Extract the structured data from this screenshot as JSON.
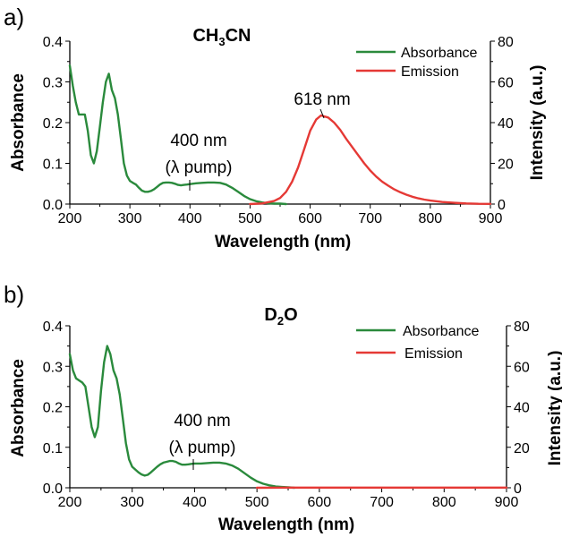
{
  "chart_data": [
    {
      "type": "line",
      "panel_label": "a)",
      "solvent": {
        "base": "CH",
        "sub": "3",
        "rest": "CN"
      },
      "xlabel": "Wavelength (nm)",
      "ylabel": "Absorbance",
      "y2label": "Intensity (a.u.)",
      "xlim": [
        200,
        900
      ],
      "ylim": [
        0,
        0.4
      ],
      "y2lim": [
        0,
        80
      ],
      "xticks": [
        200,
        300,
        400,
        500,
        600,
        700,
        800,
        900
      ],
      "yticks": [
        0.0,
        0.1,
        0.2,
        0.3,
        0.4
      ],
      "ytick_labels": [
        "0.0",
        "0.1",
        "0.2",
        "0.3",
        "0.4"
      ],
      "y2ticks": [
        0,
        20,
        40,
        60,
        80
      ],
      "legend": {
        "position": "top-right",
        "entries": [
          "Absorbance",
          "Emission"
        ]
      },
      "annotations": [
        {
          "text": "618 nm",
          "x": 618,
          "y2": 45
        },
        {
          "text": "400 nm",
          "x": 400,
          "y": 0.05
        },
        {
          "text": "(λ pump)",
          "x": 400,
          "y": 0.05
        }
      ],
      "series": [
        {
          "name": "Absorbance",
          "color": "#2a8a3c",
          "axis": "left",
          "x": [
            200,
            205,
            210,
            215,
            220,
            225,
            230,
            235,
            240,
            245,
            250,
            255,
            260,
            265,
            270,
            275,
            280,
            285,
            290,
            295,
            300,
            305,
            310,
            315,
            320,
            325,
            330,
            335,
            340,
            345,
            350,
            355,
            360,
            365,
            370,
            375,
            380,
            385,
            390,
            395,
            400,
            410,
            420,
            430,
            440,
            450,
            460,
            470,
            480,
            490,
            500,
            510,
            520,
            530,
            540,
            550,
            560
          ],
          "y": [
            0.34,
            0.29,
            0.25,
            0.22,
            0.22,
            0.22,
            0.18,
            0.12,
            0.1,
            0.13,
            0.19,
            0.25,
            0.3,
            0.32,
            0.28,
            0.26,
            0.22,
            0.16,
            0.1,
            0.07,
            0.057,
            0.052,
            0.048,
            0.04,
            0.033,
            0.03,
            0.03,
            0.032,
            0.036,
            0.042,
            0.048,
            0.052,
            0.053,
            0.053,
            0.052,
            0.05,
            0.047,
            0.046,
            0.047,
            0.048,
            0.049,
            0.051,
            0.052,
            0.053,
            0.053,
            0.052,
            0.048,
            0.04,
            0.03,
            0.02,
            0.012,
            0.007,
            0.004,
            0.002,
            0.001,
            0.001,
            0.0
          ]
        },
        {
          "name": "Emission",
          "color": "#e53935",
          "axis": "right",
          "x": [
            500,
            520,
            540,
            550,
            560,
            570,
            580,
            590,
            600,
            610,
            618,
            630,
            640,
            650,
            660,
            670,
            680,
            690,
            700,
            710,
            720,
            730,
            740,
            750,
            760,
            770,
            780,
            790,
            800,
            820,
            840,
            860,
            880,
            900
          ],
          "y": [
            0.0,
            0.3,
            1.5,
            3.0,
            6.0,
            11.0,
            18.0,
            27.0,
            36.0,
            41.5,
            43.5,
            42.5,
            40.0,
            36.5,
            32.0,
            28.0,
            24.0,
            20.0,
            16.5,
            13.5,
            11.0,
            9.0,
            7.2,
            5.8,
            4.6,
            3.6,
            2.8,
            2.2,
            1.7,
            1.0,
            0.6,
            0.3,
            0.15,
            0.1
          ]
        }
      ]
    },
    {
      "type": "line",
      "panel_label": "b)",
      "solvent": {
        "base": "D",
        "sub": "2",
        "rest": "O"
      },
      "xlabel": "Wavelength (nm)",
      "ylabel": "Absorbance",
      "y2label": "Intensity (a.u.)",
      "xlim": [
        200,
        900
      ],
      "ylim": [
        0,
        0.4
      ],
      "y2lim": [
        0,
        80
      ],
      "xticks": [
        200,
        300,
        400,
        500,
        600,
        700,
        800,
        900
      ],
      "yticks": [
        0.0,
        0.1,
        0.2,
        0.3,
        0.4
      ],
      "ytick_labels": [
        "0.0",
        "0.1",
        "0.2",
        "0.3",
        "0.4"
      ],
      "y2ticks": [
        0,
        20,
        40,
        60,
        80
      ],
      "legend": {
        "position": "top-right",
        "entries": [
          "Absorbance",
          "Emission"
        ]
      },
      "annotations": [
        {
          "text": "400 nm",
          "x": 400,
          "y": 0.05
        },
        {
          "text": "(λ pump)",
          "x": 400,
          "y": 0.05
        }
      ],
      "series": [
        {
          "name": "Absorbance",
          "color": "#2a8a3c",
          "axis": "left",
          "x": [
            200,
            205,
            210,
            215,
            220,
            225,
            230,
            235,
            240,
            245,
            250,
            255,
            260,
            265,
            270,
            275,
            280,
            285,
            290,
            295,
            300,
            305,
            310,
            315,
            320,
            325,
            330,
            335,
            340,
            345,
            350,
            355,
            360,
            365,
            370,
            375,
            380,
            385,
            390,
            395,
            400,
            410,
            420,
            430,
            440,
            450,
            460,
            470,
            480,
            490,
            500,
            510,
            520,
            530,
            540,
            550,
            560
          ],
          "y": [
            0.33,
            0.29,
            0.27,
            0.265,
            0.26,
            0.25,
            0.2,
            0.15,
            0.125,
            0.15,
            0.24,
            0.31,
            0.35,
            0.33,
            0.29,
            0.27,
            0.23,
            0.17,
            0.11,
            0.07,
            0.052,
            0.045,
            0.038,
            0.033,
            0.03,
            0.032,
            0.038,
            0.045,
            0.052,
            0.058,
            0.062,
            0.064,
            0.066,
            0.066,
            0.064,
            0.06,
            0.057,
            0.057,
            0.058,
            0.059,
            0.06,
            0.06,
            0.061,
            0.062,
            0.062,
            0.06,
            0.055,
            0.047,
            0.036,
            0.025,
            0.016,
            0.01,
            0.006,
            0.003,
            0.002,
            0.001,
            0.0
          ]
        },
        {
          "name": "Emission",
          "color": "#e53935",
          "axis": "right",
          "x": [
            500,
            550,
            600,
            650,
            700,
            750,
            800,
            850,
            900
          ],
          "y": [
            0.0,
            0.1,
            0.1,
            0.1,
            0.1,
            0.1,
            0.1,
            0.1,
            0.1
          ]
        }
      ]
    }
  ]
}
